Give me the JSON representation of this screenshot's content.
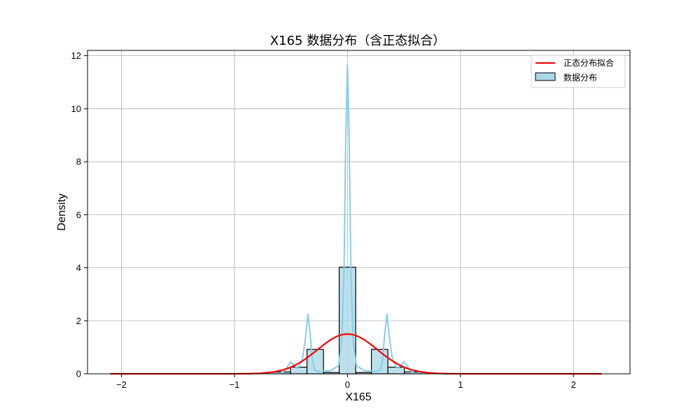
{
  "chart_data": {
    "type": "histogram",
    "title": "X165 数据分布（含正态拟合）",
    "xlabel": "X165",
    "ylabel": "Density",
    "xlim": [
      -2.3,
      2.5
    ],
    "ylim": [
      0,
      12.2
    ],
    "xticks": [
      -2,
      -1,
      0,
      1,
      2
    ],
    "xtick_labels": [
      "−2",
      "−1",
      "0",
      "1",
      "2"
    ],
    "yticks": [
      0,
      2,
      4,
      6,
      8,
      10,
      12
    ],
    "ytick_labels": [
      "0",
      "2",
      "4",
      "6",
      "8",
      "10",
      "12"
    ],
    "grid": true,
    "legend_position": "top-right",
    "legend": [
      {
        "label": "正态分布拟合",
        "kind": "line",
        "color": "#ff0000"
      },
      {
        "label": "数据分布",
        "kind": "patch",
        "color": "#add8e6"
      }
    ],
    "histogram": {
      "name": "数据分布",
      "color": "#add8e6",
      "edgecolor": "#000000",
      "bin_width": 0.146,
      "bins": [
        {
          "x0": -0.65,
          "x1": -0.504,
          "density": 0.07
        },
        {
          "x0": -0.504,
          "x1": -0.358,
          "density": 0.25
        },
        {
          "x0": -0.358,
          "x1": -0.212,
          "density": 0.92
        },
        {
          "x0": -0.212,
          "x1": -0.073,
          "density": 0.05
        },
        {
          "x0": -0.073,
          "x1": 0.073,
          "density": 4.02
        },
        {
          "x0": 0.073,
          "x1": 0.212,
          "density": 0.05
        },
        {
          "x0": 0.212,
          "x1": 0.358,
          "density": 0.92
        },
        {
          "x0": 0.358,
          "x1": 0.504,
          "density": 0.25
        },
        {
          "x0": 0.504,
          "x1": 0.65,
          "density": 0.07
        }
      ]
    },
    "kde": {
      "color": "#87ceeb",
      "x": [
        -0.9,
        -0.6,
        -0.55,
        -0.52,
        -0.5,
        -0.48,
        -0.44,
        -0.4,
        -0.37,
        -0.35,
        -0.33,
        -0.31,
        -0.29,
        -0.26,
        -0.22,
        -0.15,
        -0.08,
        -0.05,
        -0.03,
        -0.015,
        0,
        0.015,
        0.03,
        0.05,
        0.08,
        0.15,
        0.22,
        0.26,
        0.29,
        0.31,
        0.33,
        0.35,
        0.37,
        0.4,
        0.44,
        0.48,
        0.5,
        0.52,
        0.55,
        0.6,
        0.9
      ],
      "y": [
        0.0,
        0.02,
        0.12,
        0.35,
        0.45,
        0.35,
        0.2,
        0.5,
        1.4,
        2.25,
        1.5,
        0.5,
        0.15,
        0.08,
        0.1,
        0.12,
        0.3,
        1.2,
        4.0,
        9.0,
        11.65,
        9.0,
        4.0,
        1.2,
        0.3,
        0.12,
        0.1,
        0.08,
        0.15,
        0.5,
        1.5,
        2.25,
        1.4,
        0.5,
        0.2,
        0.35,
        0.45,
        0.35,
        0.12,
        0.02,
        0.0
      ]
    },
    "normal_fit": {
      "name": "正态分布拟合",
      "color": "#ff0000",
      "mean": 0.0,
      "std": 0.265,
      "x_range": [
        -2.1,
        2.25
      ],
      "peak_density": 1.5
    }
  }
}
